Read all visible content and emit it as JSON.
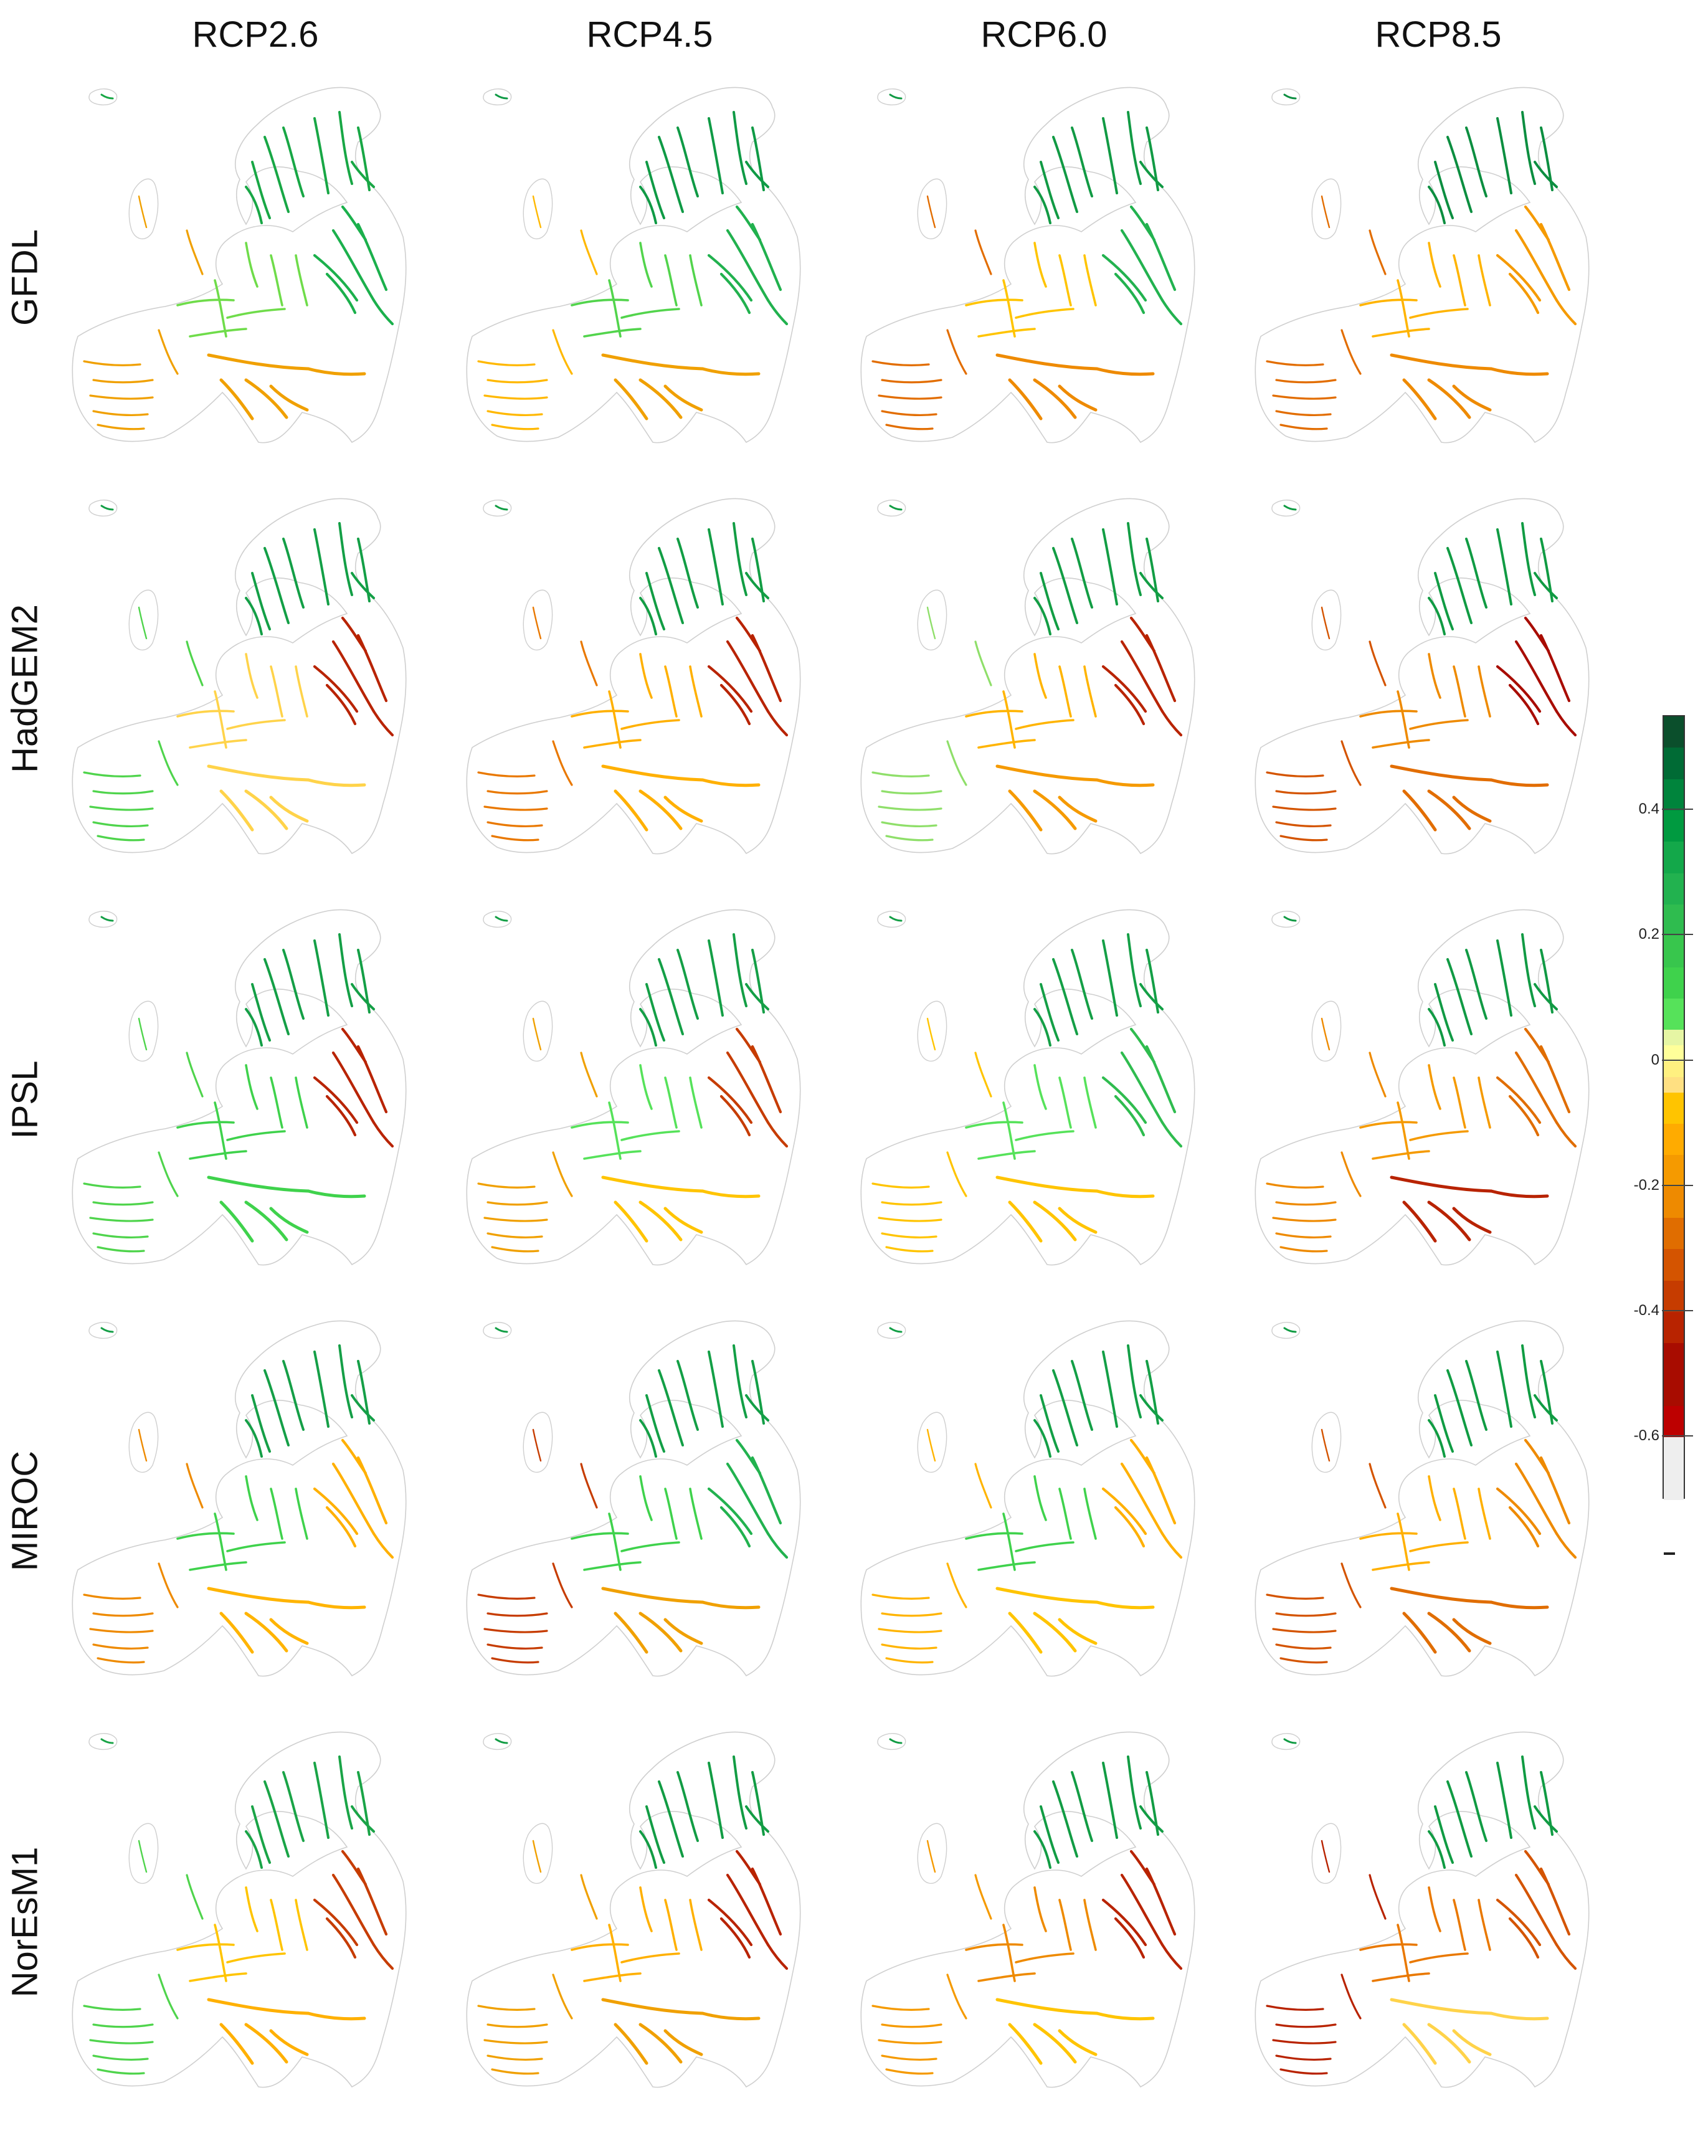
{
  "figure": {
    "columns": [
      "RCP2.6",
      "RCP4.5",
      "RCP6.0",
      "RCP8.5"
    ],
    "rows": [
      "GFDL",
      "HadGEM2",
      "IPSL",
      "MIROC",
      "NorEsM1"
    ]
  },
  "colorbar": {
    "ticks": [
      {
        "value": 0.4,
        "label": "0.4"
      },
      {
        "value": 0.2,
        "label": "0.2"
      },
      {
        "value": 0,
        "label": "0"
      },
      {
        "value": -0.2,
        "label": "-0.2"
      },
      {
        "value": -0.4,
        "label": "-0.4"
      },
      {
        "value": -0.6,
        "label": "-0.6"
      }
    ],
    "classes": [
      {
        "from": 0.5,
        "to": 0.55,
        "color": "#0b4f2c"
      },
      {
        "from": 0.45,
        "to": 0.5,
        "color": "#006b35"
      },
      {
        "from": 0.4,
        "to": 0.45,
        "color": "#00843c"
      },
      {
        "from": 0.35,
        "to": 0.4,
        "color": "#009a40"
      },
      {
        "from": 0.3,
        "to": 0.35,
        "color": "#13a84a"
      },
      {
        "from": 0.25,
        "to": 0.3,
        "color": "#22b24f"
      },
      {
        "from": 0.2,
        "to": 0.25,
        "color": "#2fbc4f"
      },
      {
        "from": 0.15,
        "to": 0.2,
        "color": "#38c64d"
      },
      {
        "from": 0.1,
        "to": 0.15,
        "color": "#3fd24c"
      },
      {
        "from": 0.05,
        "to": 0.1,
        "color": "#56e25a"
      },
      {
        "from": 0.025,
        "to": 0.05,
        "color": "#e6f6a4"
      },
      {
        "from": 0.0,
        "to": 0.025,
        "color": "#ffff9a"
      },
      {
        "from": -0.025,
        "to": 0.0,
        "color": "#fff080"
      },
      {
        "from": -0.05,
        "to": -0.025,
        "color": "#ffe082"
      },
      {
        "from": -0.1,
        "to": -0.05,
        "color": "#ffc400"
      },
      {
        "from": -0.15,
        "to": -0.1,
        "color": "#ffab00"
      },
      {
        "from": -0.2,
        "to": -0.15,
        "color": "#f59a00"
      },
      {
        "from": -0.25,
        "to": -0.2,
        "color": "#ee8a00"
      },
      {
        "from": -0.3,
        "to": -0.25,
        "color": "#e06d00"
      },
      {
        "from": -0.35,
        "to": -0.3,
        "color": "#d45400"
      },
      {
        "from": -0.4,
        "to": -0.35,
        "color": "#c63c00"
      },
      {
        "from": -0.45,
        "to": -0.4,
        "color": "#b82300"
      },
      {
        "from": -0.55,
        "to": -0.45,
        "color": "#a80c00"
      },
      {
        "from": -0.6,
        "to": -0.55,
        "color": "#bd0000"
      },
      {
        "from": -0.7,
        "to": -0.6,
        "color": "#eeeeee"
      }
    ]
  },
  "map_cells": [
    {
      "row": "GFDL",
      "column": "RCP2.6",
      "north": "#18a745",
      "west": "#f0a000",
      "central": "#6fdc4a",
      "east": "#1bb04c",
      "south": "#f0a000"
    },
    {
      "row": "GFDL",
      "column": "RCP4.5",
      "north": "#0f9a45",
      "west": "#ffb800",
      "central": "#52d44c",
      "east": "#21b14e",
      "south": "#f0a000"
    },
    {
      "row": "GFDL",
      "column": "RCP6.0",
      "north": "#119a44",
      "west": "#e26d00",
      "central": "#ffc400",
      "east": "#22b24f",
      "south": "#ee8a00"
    },
    {
      "row": "GFDL",
      "column": "RCP8.5",
      "north": "#0c8e40",
      "west": "#e26d00",
      "central": "#ffb400",
      "east": "#f59a00",
      "south": "#ee8a00"
    },
    {
      "row": "HadGEM2",
      "column": "RCP2.6",
      "north": "#139f46",
      "west": "#4fd44c",
      "central": "#ffd34a",
      "east": "#b82300",
      "south": "#ffd34a"
    },
    {
      "row": "HadGEM2",
      "column": "RCP4.5",
      "north": "#129d44",
      "west": "#e97800",
      "central": "#ffb000",
      "east": "#b82300",
      "south": "#ffb000"
    },
    {
      "row": "HadGEM2",
      "column": "RCP6.0",
      "north": "#129d44",
      "west": "#8fdf6a",
      "central": "#ffb400",
      "east": "#b82300",
      "south": "#f59a00"
    },
    {
      "row": "HadGEM2",
      "column": "RCP8.5",
      "north": "#109b43",
      "west": "#d45400",
      "central": "#ee8a00",
      "east": "#a80c00",
      "south": "#e26d00"
    },
    {
      "row": "IPSL",
      "column": "RCP2.6",
      "north": "#149f46",
      "west": "#4fd44c",
      "central": "#3fd24c",
      "east": "#b82300",
      "south": "#3fd24c"
    },
    {
      "row": "IPSL",
      "column": "RCP4.5",
      "north": "#149f46",
      "west": "#f0a000",
      "central": "#56e25a",
      "east": "#c63c00",
      "south": "#ffc400"
    },
    {
      "row": "IPSL",
      "column": "RCP6.0",
      "north": "#149f46",
      "west": "#ffc400",
      "central": "#56e25a",
      "east": "#2fbc4f",
      "south": "#ffc400"
    },
    {
      "row": "IPSL",
      "column": "RCP8.5",
      "north": "#119a44",
      "west": "#ee8a00",
      "central": "#f59a00",
      "east": "#e06d00",
      "south": "#b82300"
    },
    {
      "row": "MIROC",
      "column": "RCP2.6",
      "north": "#159f47",
      "west": "#ee8a00",
      "central": "#3fd24c",
      "east": "#ffb000",
      "south": "#ffb400"
    },
    {
      "row": "MIROC",
      "column": "RCP4.5",
      "north": "#139f46",
      "west": "#c63c00",
      "central": "#3fd24c",
      "east": "#22b24f",
      "south": "#f0a000"
    },
    {
      "row": "MIROC",
      "column": "RCP6.0",
      "north": "#139f46",
      "west": "#ffb400",
      "central": "#3fd24c",
      "east": "#ffb000",
      "south": "#ffc400"
    },
    {
      "row": "MIROC",
      "column": "RCP8.5",
      "north": "#109c43",
      "west": "#d45400",
      "central": "#ffb000",
      "east": "#ee8a00",
      "south": "#e06d00"
    },
    {
      "row": "NorEsM1",
      "column": "RCP2.6",
      "north": "#1aa447",
      "west": "#4fd44c",
      "central": "#ffc400",
      "east": "#c63c00",
      "south": "#ffb000"
    },
    {
      "row": "NorEsM1",
      "column": "RCP4.5",
      "north": "#129c44",
      "west": "#f0a000",
      "central": "#ffb000",
      "east": "#b82300",
      "south": "#f0a000"
    },
    {
      "row": "NorEsM1",
      "column": "RCP6.0",
      "north": "#129c44",
      "west": "#f59a00",
      "central": "#ee8a00",
      "east": "#b82300",
      "south": "#ffc400"
    },
    {
      "row": "NorEsM1",
      "column": "RCP8.5",
      "north": "#109b43",
      "west": "#b82300",
      "central": "#e97800",
      "east": "#d45400",
      "south": "#ffd34a"
    }
  ]
}
